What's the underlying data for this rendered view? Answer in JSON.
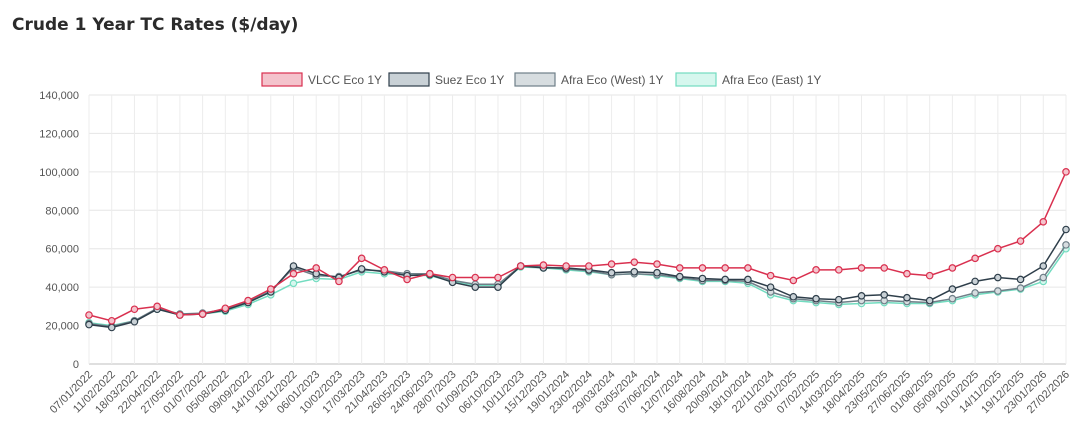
{
  "page": {
    "title": "Crude 1 Year TC Rates ($/day)"
  },
  "chart_data": {
    "type": "line",
    "title": "Crude 1 Year TC Rates ($/day)",
    "xlabel": "",
    "ylabel": "",
    "ylim": [
      0,
      140000
    ],
    "yticks": [
      0,
      20000,
      40000,
      60000,
      80000,
      100000,
      120000,
      140000
    ],
    "ytick_labels": [
      "0",
      "20,000",
      "40,000",
      "60,000",
      "80,000",
      "100,000",
      "120,000",
      "140,000"
    ],
    "grid": true,
    "legend_position": "top-center",
    "x_labels": [
      "07/01/2022",
      "11/02/2022",
      "18/03/2022",
      "22/04/2022",
      "27/05/2022",
      "01/07/2022",
      "05/08/2022",
      "09/09/2022",
      "14/10/2022",
      "18/11/2022",
      "06/01/2023",
      "10/02/2023",
      "17/03/2023",
      "21/04/2023",
      "26/05/2023",
      "24/06/2023",
      "28/07/2023",
      "01/09/2023",
      "06/10/2023",
      "10/11/2023",
      "15/12/2023",
      "19/01/2024",
      "23/02/2024",
      "29/03/2024",
      "03/05/2024",
      "07/06/2024",
      "12/07/2024",
      "16/08/2024",
      "20/09/2024",
      "18/10/2024",
      "22/11/2024",
      "03/01/2025",
      "07/02/2025",
      "14/03/2025",
      "18/04/2025",
      "23/05/2025",
      "27/06/2025",
      "01/08/2025",
      "05/09/2025",
      "10/10/2025",
      "14/11/2025",
      "19/12/2025",
      "23/01/2026",
      "27/02/2026"
    ],
    "series": [
      {
        "name": "VLCC Eco 1Y",
        "color": "#d9304f",
        "fill": "#f4c3cc",
        "values": [
          25500,
          22500,
          28500,
          30000,
          25500,
          26000,
          29000,
          33000,
          39000,
          47000,
          50000,
          43000,
          55000,
          49000,
          44000,
          47000,
          45000,
          45000,
          45000,
          51000,
          51500,
          51000,
          51000,
          52000,
          53000,
          52000,
          50000,
          50000,
          50000,
          50000,
          46000,
          43500,
          49000,
          49000,
          50000,
          50000,
          47000,
          46000,
          50000,
          55000,
          60000,
          64000,
          74000,
          100000
        ]
      },
      {
        "name": "Suez Eco 1Y",
        "color": "#2e3e4a",
        "fill": "#c9d1d6",
        "values": [
          20500,
          19000,
          22000,
          28500,
          25500,
          26000,
          28000,
          32000,
          37500,
          51000,
          47000,
          45000,
          49500,
          48000,
          46000,
          46500,
          42500,
          40000,
          40000,
          51000,
          50000,
          50000,
          49000,
          47500,
          48000,
          47500,
          45500,
          44500,
          44000,
          44000,
          40000,
          35000,
          34000,
          33500,
          35500,
          36000,
          34500,
          33000,
          39000,
          43000,
          45000,
          44000,
          51000,
          70000
        ]
      },
      {
        "name": "Afra Eco (West) 1Y",
        "color": "#6f7f88",
        "fill": "#d7dde0",
        "values": [
          21000,
          19500,
          22500,
          29000,
          26000,
          26500,
          28500,
          32500,
          38000,
          50000,
          46000,
          45500,
          49000,
          48500,
          47000,
          47000,
          43500,
          41500,
          41500,
          51000,
          50500,
          49500,
          48500,
          46500,
          47000,
          46500,
          45000,
          43500,
          43500,
          43000,
          37500,
          34000,
          33000,
          32000,
          33000,
          33000,
          32500,
          32000,
          34000,
          37000,
          38000,
          39500,
          45000,
          62000
        ]
      },
      {
        "name": "Afra Eco (East) 1Y",
        "color": "#72dcc0",
        "fill": "#d6f7ee",
        "values": [
          21500,
          20000,
          22500,
          28500,
          26000,
          26000,
          27500,
          31000,
          36000,
          42000,
          44500,
          44000,
          48000,
          47000,
          46500,
          46000,
          43000,
          41000,
          41000,
          50500,
          50000,
          49000,
          48000,
          46500,
          47000,
          46000,
          44500,
          43000,
          43000,
          42000,
          36000,
          33000,
          32000,
          31000,
          31500,
          32000,
          31500,
          31500,
          33000,
          36000,
          37500,
          39000,
          43000,
          60000
        ]
      }
    ]
  }
}
